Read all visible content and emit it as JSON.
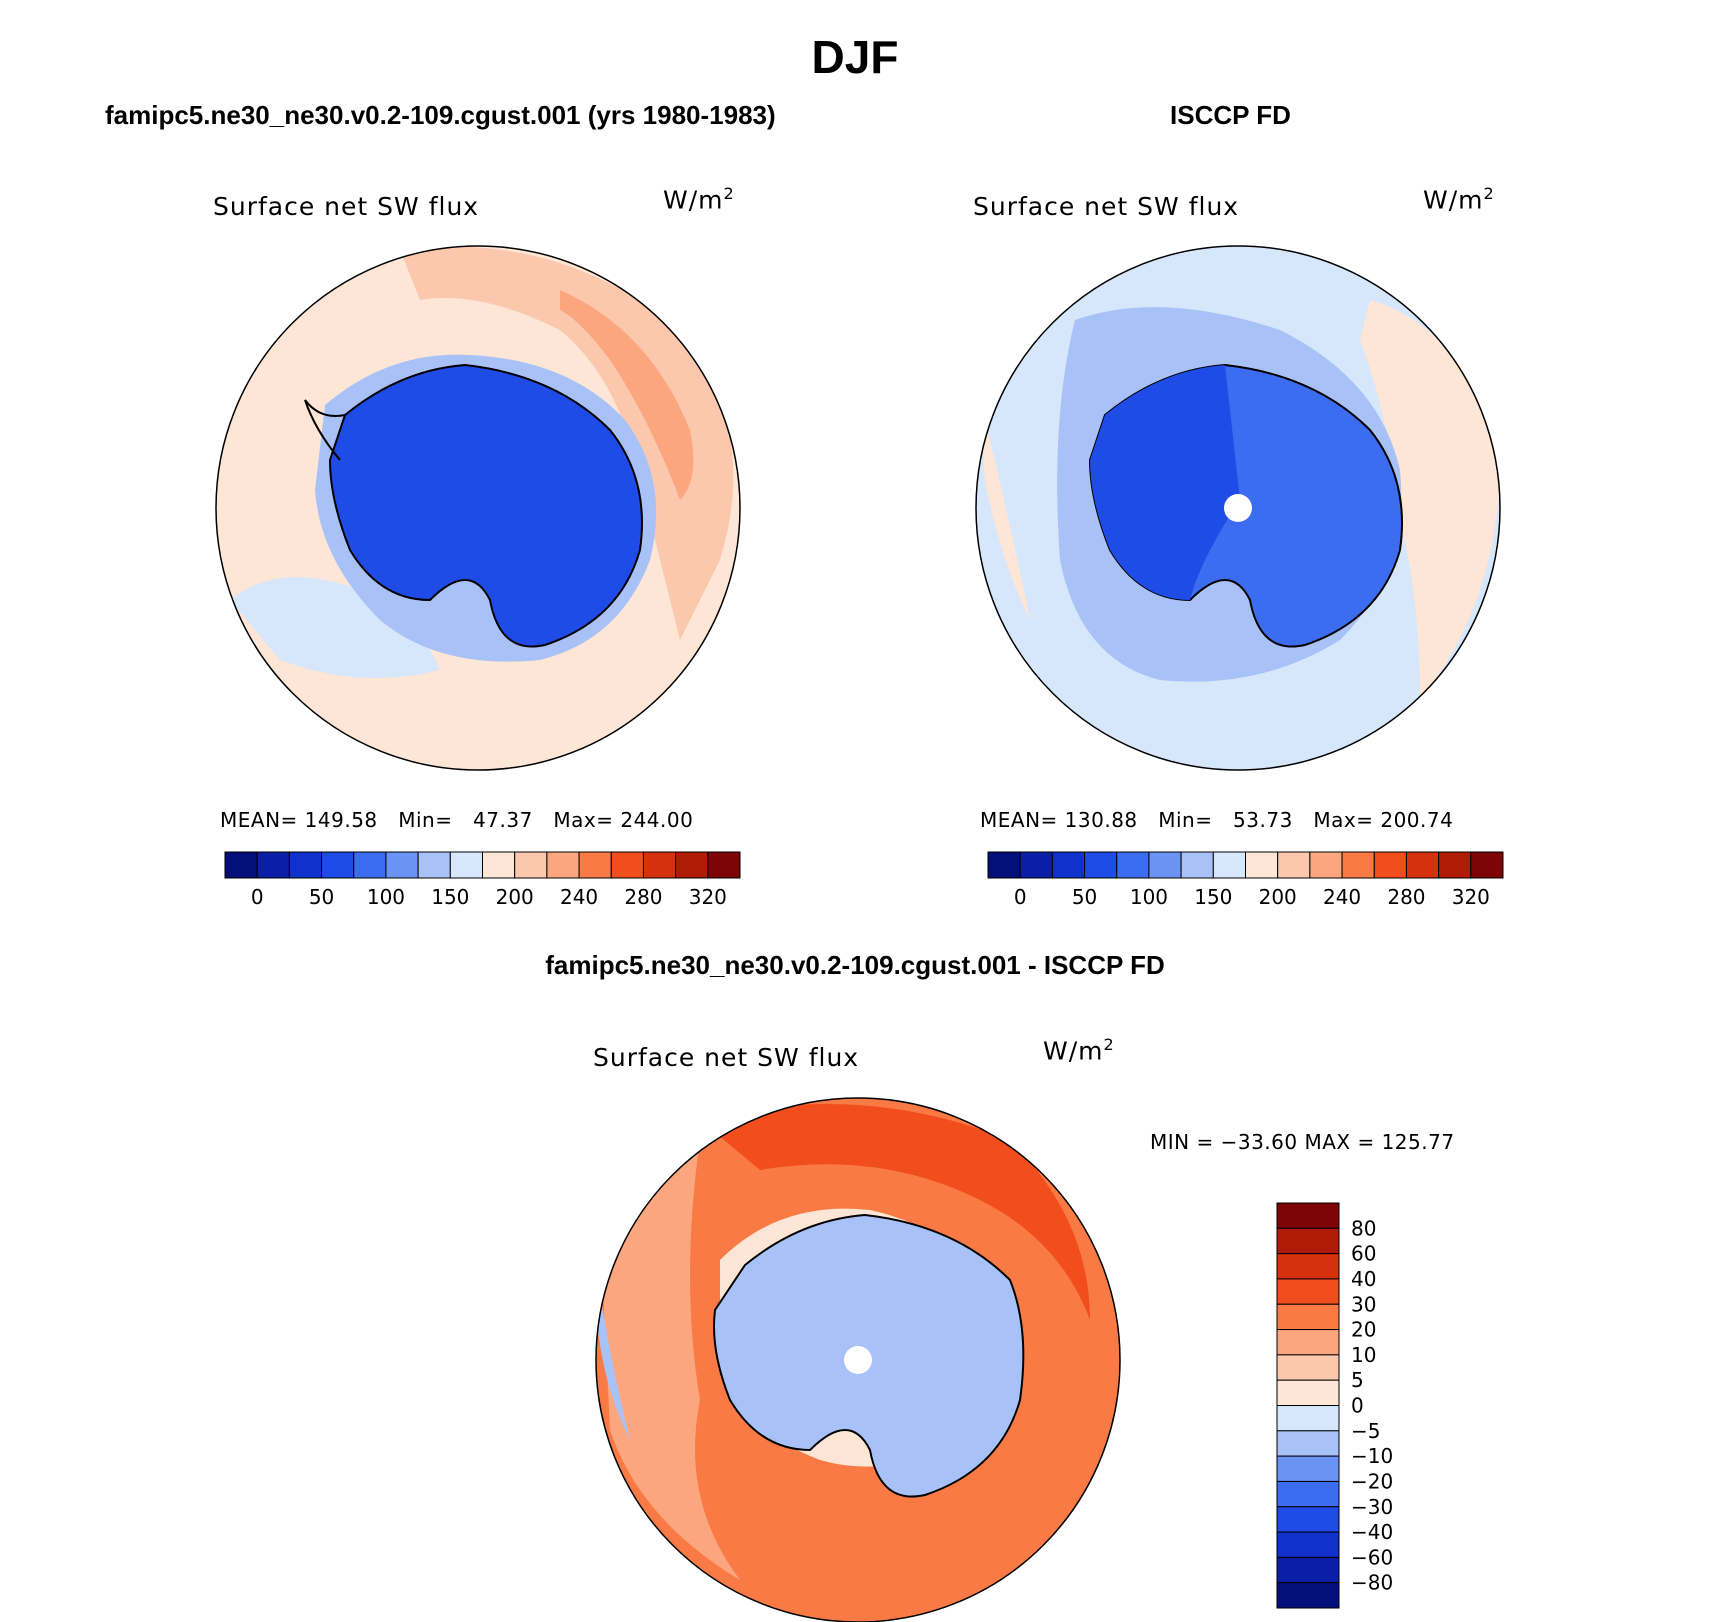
{
  "figure": {
    "title": "DJF"
  },
  "panels": [
    {
      "header": "famipc5.ne30_ne30.v0.2-109.cgust.001 (yrs 1980-1983)",
      "variable": "Surface net SW flux",
      "units_base": "W/m",
      "units_sup": "2",
      "stats": {
        "mean_label": "MEAN=",
        "mean": "149.58",
        "min_label": "Min=",
        "min": "47.37",
        "max_label": "Max=",
        "max": "244.00"
      }
    },
    {
      "header": "ISCCP FD",
      "variable": "Surface net SW flux",
      "units_base": "W/m",
      "units_sup": "2",
      "stats": {
        "mean_label": "MEAN=",
        "mean": "130.88",
        "min_label": "Min=",
        "min": "53.73",
        "max_label": "Max=",
        "max": "200.74"
      }
    }
  ],
  "diff_panel": {
    "header": "famipc5.ne30_ne30.v0.2-109.cgust.001 - ISCCP FD",
    "variable": "Surface net SW flux",
    "units_base": "W/m",
    "units_sup": "2",
    "minmax": "MIN = −33.60 MAX = 125.77"
  },
  "colorbars": {
    "abs": {
      "labels": [
        "0",
        "50",
        "100",
        "150",
        "200",
        "240",
        "280",
        "320"
      ],
      "colors": [
        "#050f7a",
        "#0a1ea6",
        "#0f32cd",
        "#1f4be6",
        "#3c6cf0",
        "#6b93f4",
        "#a8c2f8",
        "#d6e6fb",
        "#fde6d6",
        "#fcc8ad",
        "#fba67e",
        "#fa7a45",
        "#f24d1d",
        "#d6310d",
        "#b01b07",
        "#7d0505"
      ]
    },
    "diff": {
      "labels": [
        "80",
        "60",
        "40",
        "30",
        "20",
        "10",
        "5",
        "0",
        "−5",
        "−10",
        "−20",
        "−30",
        "−40",
        "−60",
        "−80"
      ],
      "colors_top_to_bottom": [
        "#7d0505",
        "#b01b07",
        "#d6310d",
        "#f24d1d",
        "#fa7a45",
        "#fba67e",
        "#fcc8ad",
        "#fde6d6",
        "#d6e6fb",
        "#a8c2f8",
        "#6b93f4",
        "#3c6cf0",
        "#1f4be6",
        "#0f32cd",
        "#0a1ea6",
        "#050f7a"
      ]
    }
  },
  "colors": {
    "land_outline": "#000000",
    "ocean_model": "#fde6d6",
    "antarctica_model": "#1f4be6",
    "ocean_obs": "#d6e6fb",
    "antarctica_obs": "#3c6cf0",
    "ocean_diff": "#fa7a45",
    "antarctica_diff": "#a8c2f8"
  }
}
